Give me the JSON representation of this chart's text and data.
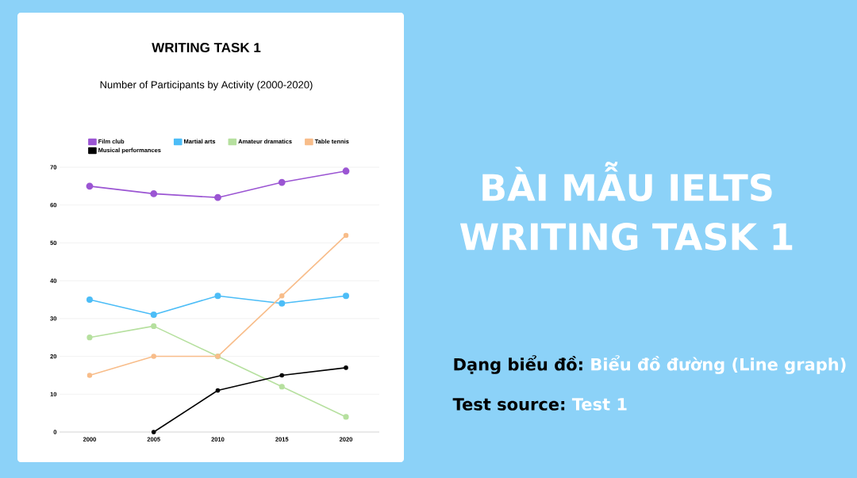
{
  "chart_data": {
    "type": "line",
    "title": "WRITING TASK 1",
    "subtitle": "Number of Participants by Activity (2000-2020)",
    "categories": [
      "2000",
      "2005",
      "2010",
      "2015",
      "2020"
    ],
    "series": [
      {
        "name": "Film club",
        "color": "#9b55d3",
        "values": [
          65,
          63,
          62,
          66,
          69
        ]
      },
      {
        "name": "Martial arts",
        "color": "#4cbdf7",
        "values": [
          35,
          31,
          36,
          34,
          36
        ]
      },
      {
        "name": "Amateur dramatics",
        "color": "#b6e09f",
        "values": [
          25,
          28,
          20,
          12,
          4
        ]
      },
      {
        "name": "Table tennis",
        "color": "#f8bd8a",
        "values": [
          15,
          20,
          20,
          36,
          52
        ]
      },
      {
        "name": "Musical performances",
        "color": "#000000",
        "values": [
          null,
          0,
          11,
          15,
          17
        ]
      }
    ],
    "ylim": [
      0,
      70
    ],
    "yticks": [
      0,
      10,
      20,
      30,
      40,
      50,
      60,
      70
    ],
    "grid": "y",
    "legend": "top",
    "marker": "circle",
    "line_style": "solid",
    "annotations": [
      "BÀI MẪU IELTS WRITING TASK 1",
      "Dạng biểu đồ:",
      "Biểu đồ đường (Line graph)",
      "Test source:",
      "Test 1"
    ]
  }
}
